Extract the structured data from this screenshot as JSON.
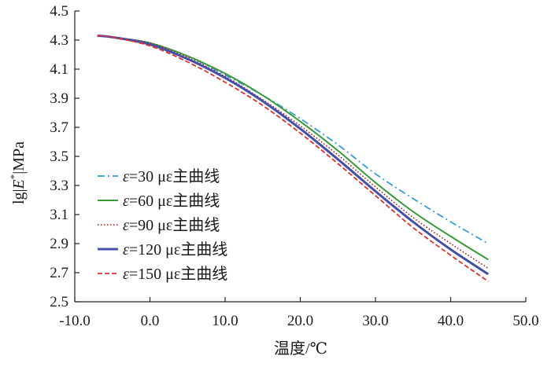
{
  "chart_data": {
    "type": "line",
    "title": "",
    "xlabel": "温度/℃",
    "ylabel_parts": [
      "lg|",
      "E",
      "*",
      "|MPa"
    ],
    "xlim": [
      -10,
      50
    ],
    "ylim": [
      2.5,
      4.5
    ],
    "x_ticks": [
      -10,
      0,
      10,
      20,
      30,
      40,
      50
    ],
    "x_tick_labels": [
      "-10.0",
      "0.0",
      "10.0",
      "20.0",
      "30.0",
      "40.0",
      "50.0"
    ],
    "y_ticks": [
      2.5,
      2.7,
      2.9,
      3.1,
      3.3,
      3.5,
      3.7,
      3.9,
      4.1,
      4.3,
      4.5
    ],
    "y_tick_labels": [
      "2.5",
      "2.7",
      "2.9",
      "3.1",
      "3.3",
      "3.5",
      "3.7",
      "3.9",
      "4.1",
      "4.3",
      "4.5"
    ],
    "grid": false,
    "legend_position": "lower-left",
    "series": [
      {
        "name_symbol": "ε",
        "name": "=30 με主曲线",
        "color": "#3a9ad9",
        "dash": "dashdot",
        "x": [
          -7,
          -5,
          0,
          5,
          10,
          15,
          20,
          25,
          30,
          35,
          40,
          45
        ],
        "y": [
          4.33,
          4.32,
          4.28,
          4.19,
          4.06,
          3.92,
          3.76,
          3.58,
          3.38,
          3.21,
          3.05,
          2.9
        ]
      },
      {
        "name_symbol": "ε",
        "name": "=60 με主曲线",
        "color": "#3a9a3a",
        "dash": "solid",
        "x": [
          -7,
          -5,
          0,
          5,
          10,
          15,
          20,
          25,
          30,
          35,
          40,
          45
        ],
        "y": [
          4.33,
          4.32,
          4.28,
          4.19,
          4.07,
          3.92,
          3.74,
          3.54,
          3.32,
          3.12,
          2.95,
          2.79
        ]
      },
      {
        "name_symbol": "ε",
        "name": "=90 με主曲线",
        "color": "#a01818",
        "dash": "dotted",
        "x": [
          -7,
          -5,
          0,
          5,
          10,
          15,
          20,
          25,
          30,
          35,
          40,
          45
        ],
        "y": [
          4.33,
          4.32,
          4.28,
          4.18,
          4.05,
          3.89,
          3.71,
          3.51,
          3.29,
          3.08,
          2.9,
          2.73
        ]
      },
      {
        "name_symbol": "ε",
        "name": "=120 με主曲线",
        "color": "#4450a8",
        "dash": "solid-thick",
        "x": [
          -7,
          -5,
          0,
          5,
          10,
          15,
          20,
          25,
          30,
          35,
          40,
          45
        ],
        "y": [
          4.33,
          4.32,
          4.27,
          4.17,
          4.04,
          3.88,
          3.69,
          3.48,
          3.26,
          3.05,
          2.86,
          2.69
        ]
      },
      {
        "name_symbol": "ε",
        "name": "=150 με主曲线",
        "color": "#e03030",
        "dash": "dashed",
        "x": [
          -7,
          -5,
          0,
          5,
          10,
          15,
          20,
          25,
          30,
          35,
          40,
          45
        ],
        "y": [
          4.33,
          4.32,
          4.26,
          4.15,
          4.01,
          3.85,
          3.66,
          3.45,
          3.23,
          3.01,
          2.82,
          2.64
        ]
      }
    ]
  }
}
